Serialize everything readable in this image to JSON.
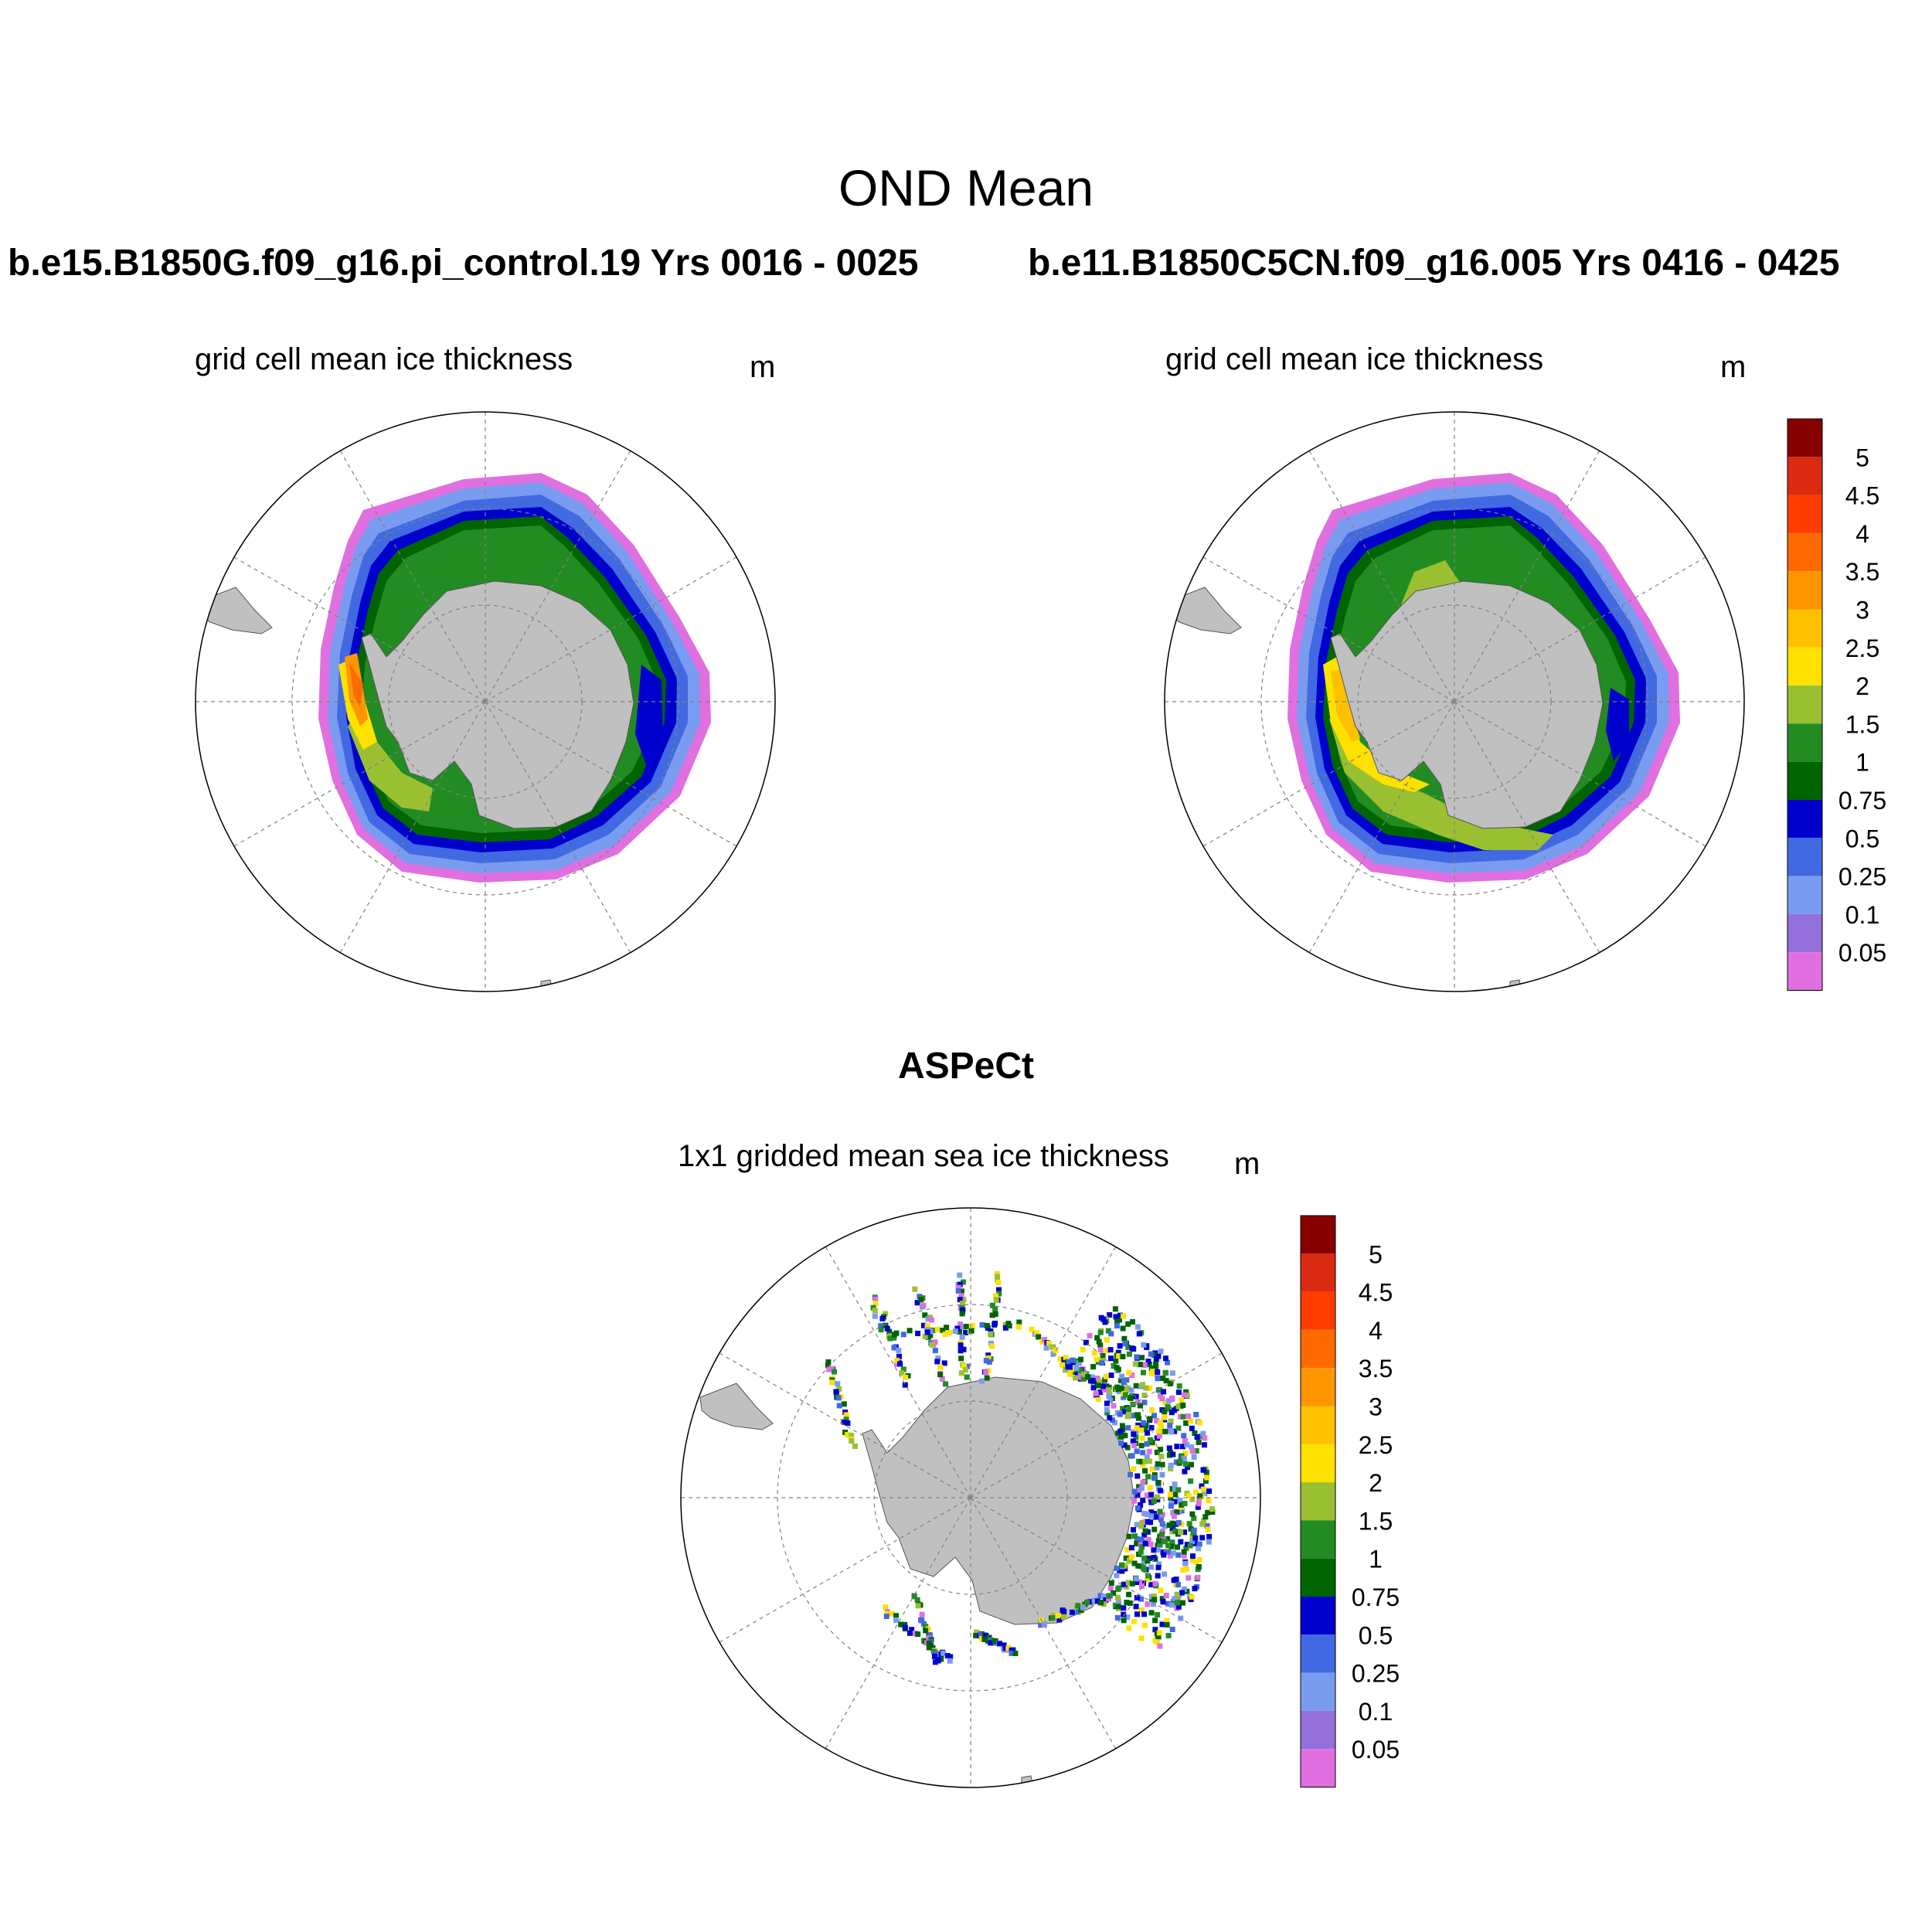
{
  "figure": {
    "title": "OND Mean",
    "panels": [
      {
        "case": "b.e15.B1850G.f09_g16.pi_control.19  Yrs 0016 - 0025",
        "subtitle": "grid cell mean ice thickness",
        "units": "m"
      },
      {
        "case": "b.e11.B1850C5CN.f09_g16.005  Yrs 0416 - 0425",
        "subtitle": "grid cell mean ice thickness",
        "units": "m"
      },
      {
        "case": "ASPeCt",
        "subtitle": "1x1 gridded mean sea ice thickness",
        "units": "m"
      }
    ]
  },
  "legend": {
    "labels": [
      "5",
      "4.5",
      "4",
      "3.5",
      "3",
      "2.5",
      "2",
      "1.5",
      "1",
      "0.75",
      "0.5",
      "0.25",
      "0.1",
      "0.05"
    ],
    "colors": [
      "#870000",
      "#d92a12",
      "#ff3c00",
      "#ff6a00",
      "#ff9600",
      "#ffc000",
      "#ffe100",
      "#9ac032",
      "#228b22",
      "#006400",
      "#0000cd",
      "#4169e1",
      "#7a9cf0",
      "#9370db",
      "#e070e0"
    ]
  },
  "map": {
    "land_color": "#c0c0c0",
    "graticule_color": "#808080",
    "projection": "south polar stereographic"
  }
}
